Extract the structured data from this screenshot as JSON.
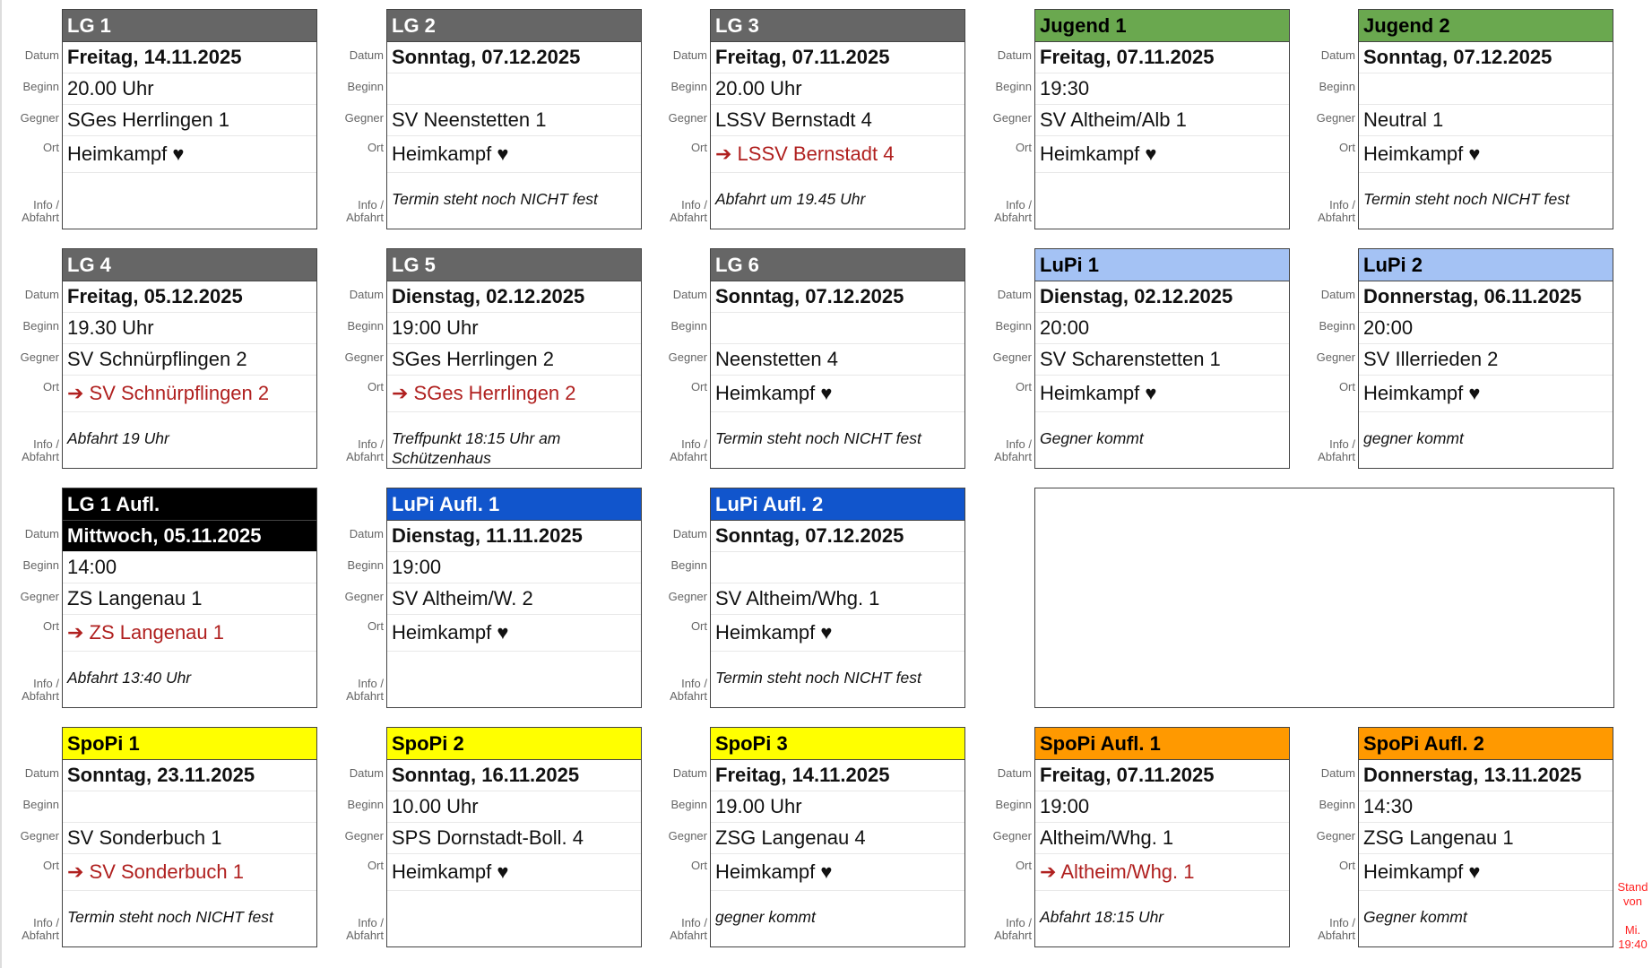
{
  "labels": {
    "datum": "Datum",
    "beginn": "Beginn",
    "gegner": "Gegner",
    "ort": "Ort",
    "info_1": "Info /",
    "info_2": "Abfahrt"
  },
  "colors": {
    "gray": "#666666",
    "green": "#6aa84f",
    "lightblue": "#a4c2f4",
    "blue": "#1155cc",
    "black": "#000000",
    "yellow": "#ffff00",
    "orange": "#ff9900",
    "away_text": "#b0201f"
  },
  "cards": [
    {
      "title": "LG 1",
      "header_bg": "#666666",
      "header_fg": "#ffffff",
      "datum": "Freitag, 14.11.2025",
      "beginn": "20.00 Uhr",
      "gegner": "SGes Herrlingen 1",
      "ort": "Heimkampf ♥",
      "away": false,
      "info": ""
    },
    {
      "title": "LG 2",
      "header_bg": "#666666",
      "header_fg": "#ffffff",
      "datum": "Sonntag, 07.12.2025",
      "beginn": "",
      "gegner": "SV Neenstetten 1",
      "ort": "Heimkampf ♥",
      "away": false,
      "info": "Termin steht noch NICHT fest"
    },
    {
      "title": "LG 3",
      "header_bg": "#666666",
      "header_fg": "#ffffff",
      "datum": "Freitag, 07.11.2025",
      "beginn": "20.00 Uhr",
      "gegner": "LSSV Bernstadt 4",
      "ort": "➔ LSSV Bernstadt 4",
      "away": true,
      "info": "Abfahrt um 19.45 Uhr"
    },
    {
      "title": "Jugend 1",
      "header_bg": "#6aa84f",
      "header_fg": "#000000",
      "datum": "Freitag, 07.11.2025",
      "beginn": "19:30",
      "gegner": "SV Altheim/Alb 1",
      "ort": "Heimkampf ♥",
      "away": false,
      "info": ""
    },
    {
      "title": "Jugend 2",
      "header_bg": "#6aa84f",
      "header_fg": "#000000",
      "datum": "Sonntag, 07.12.2025",
      "beginn": "",
      "gegner": "Neutral 1",
      "ort": "Heimkampf ♥",
      "away": false,
      "info": "Termin steht noch NICHT fest"
    },
    {
      "title": "LG 4",
      "header_bg": "#666666",
      "header_fg": "#ffffff",
      "datum": "Freitag, 05.12.2025",
      "beginn": "19.30 Uhr",
      "gegner": "SV Schnürpflingen 2",
      "ort": "➔ SV Schnürpflingen 2",
      "away": true,
      "info": "Abfahrt 19 Uhr"
    },
    {
      "title": "LG 5",
      "header_bg": "#666666",
      "header_fg": "#ffffff",
      "datum": "Dienstag, 02.12.2025",
      "beginn": "19:00 Uhr",
      "gegner": "SGes Herrlingen 2",
      "ort": "➔ SGes Herrlingen 2",
      "away": true,
      "info": "Treffpunkt 18:15 Uhr am Schützenhaus"
    },
    {
      "title": "LG 6",
      "header_bg": "#666666",
      "header_fg": "#ffffff",
      "datum": "Sonntag, 07.12.2025",
      "beginn": "",
      "gegner": "Neenstetten 4",
      "ort": "Heimkampf ♥",
      "away": false,
      "info": "Termin steht noch NICHT fest"
    },
    {
      "title": "LuPi 1",
      "header_bg": "#a4c2f4",
      "header_fg": "#000000",
      "datum": "Dienstag, 02.12.2025",
      "beginn": "20:00",
      "gegner": "SV Scharenstetten 1",
      "ort": "Heimkampf ♥",
      "away": false,
      "info": "Gegner kommt"
    },
    {
      "title": "LuPi 2",
      "header_bg": "#a4c2f4",
      "header_fg": "#000000",
      "datum": "Donnerstag, 06.11.2025",
      "beginn": "20:00",
      "gegner": "SV Illerrieden 2",
      "ort": "Heimkampf ♥",
      "away": false,
      "info": "gegner kommt"
    },
    {
      "title": "LG 1 Aufl.",
      "header_bg": "#000000",
      "header_fg": "#ffffff",
      "dark_date": true,
      "datum": "Mittwoch, 05.11.2025",
      "beginn": "14:00",
      "gegner": "ZS Langenau 1",
      "ort": "➔ ZS Langenau 1",
      "away": true,
      "info": "Abfahrt 13:40 Uhr"
    },
    {
      "title": "LuPi Aufl. 1",
      "header_bg": "#1155cc",
      "header_fg": "#ffffff",
      "datum": "Dienstag, 11.11.2025",
      "beginn": "19:00",
      "gegner": "SV Altheim/W. 2",
      "ort": "Heimkampf ♥",
      "away": false,
      "info": ""
    },
    {
      "title": "LuPi Aufl. 2",
      "header_bg": "#1155cc",
      "header_fg": "#ffffff",
      "datum": "Sonntag, 07.12.2025",
      "beginn": "",
      "gegner": "SV Altheim/Whg. 1",
      "ort": "Heimkampf ♥",
      "away": false,
      "info": "Termin steht noch NICHT fest"
    },
    null,
    null,
    {
      "title": "SpoPi 1",
      "header_bg": "#ffff00",
      "header_fg": "#000000",
      "datum": "Sonntag, 23.11.2025",
      "beginn": "",
      "gegner": "SV Sonderbuch 1",
      "ort": "➔ SV Sonderbuch 1",
      "away": true,
      "info": "Termin steht noch NICHT fest"
    },
    {
      "title": "SpoPi 2",
      "header_bg": "#ffff00",
      "header_fg": "#000000",
      "datum": "Sonntag, 16.11.2025",
      "beginn": "10.00 Uhr",
      "gegner": "SPS Dornstadt-Boll. 4",
      "ort": "Heimkampf ♥",
      "away": false,
      "info": ""
    },
    {
      "title": "SpoPi 3",
      "header_bg": "#ffff00",
      "header_fg": "#000000",
      "datum": "Freitag, 14.11.2025",
      "beginn": "19.00 Uhr",
      "gegner": "ZSG Langenau 4",
      "ort": "Heimkampf ♥",
      "away": false,
      "info": "gegner kommt"
    },
    {
      "title": "SpoPi Aufl. 1",
      "header_bg": "#ff9900",
      "header_fg": "#000000",
      "datum": "Freitag, 07.11.2025",
      "beginn": "19:00",
      "gegner": "Altheim/Whg. 1",
      "ort": "➔ Altheim/Whg. 1",
      "away": true,
      "info": "Abfahrt 18:15 Uhr"
    },
    {
      "title": "SpoPi Aufl. 2",
      "header_bg": "#ff9900",
      "header_fg": "#000000",
      "datum": "Donnerstag, 13.11.2025",
      "beginn": "14:30",
      "gegner": "ZSG Langenau 1",
      "ort": "Heimkampf ♥",
      "away": false,
      "info": "Gegner kommt"
    }
  ],
  "stand": {
    "line1": "Stand",
    "line2": "von",
    "line3": "Mi.",
    "line4": "19:40"
  }
}
